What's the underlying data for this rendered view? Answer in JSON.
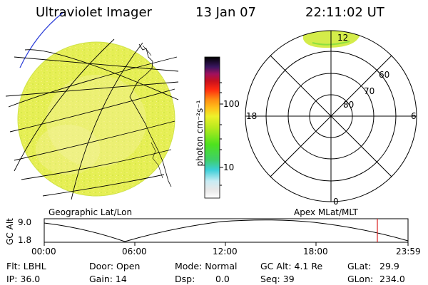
{
  "header": {
    "title": "Ultraviolet Imager",
    "date": "13 Jan 07",
    "time": "22:11:02 UT"
  },
  "colorbar": {
    "unit_label": "photon cm⁻²s⁻¹",
    "ticks": [
      "100",
      "10"
    ]
  },
  "polar": {
    "lat_labels": [
      "60",
      "70",
      "80"
    ],
    "mlt_labels": [
      "12",
      "18",
      "6",
      "0"
    ]
  },
  "panels": {
    "left_label": "Geographic Lat/Lon",
    "right_label": "Apex MLat/MLT"
  },
  "altitude_plot": {
    "ylabel": "GC Alt",
    "ytick_top": "9.0",
    "ytick_bottom": "1.8",
    "xticks": [
      "00:00",
      "06:00",
      "12:00",
      "18:00",
      "23:59"
    ]
  },
  "info": {
    "filter": "Flt: LBHL",
    "ip": "IP: 36.0",
    "door": "Door: Open",
    "gain": "Gain: 14",
    "mode": "Mode: Normal",
    "dsp": "Dsp:",
    "dsp_value": "0.0",
    "gc_alt": "GC Alt: 4.1 Re",
    "seq": "Seq: 39",
    "glat_label": "GLat:",
    "glat_value": "29.9",
    "glon_label": "GLon:",
    "glon_value": "234.0"
  },
  "colors": {
    "globe_fill": "#e6ef55",
    "globe_edge": "#cfe24a",
    "glow_fill": "#d4ec4a",
    "marker_red": "#d81e1e",
    "limb_blue": "#2a3cd8"
  }
}
